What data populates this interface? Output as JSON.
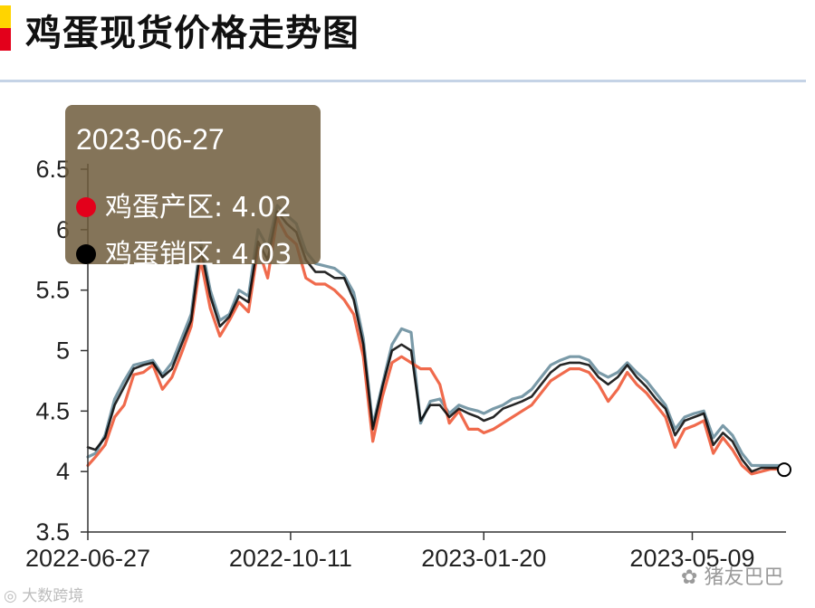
{
  "title": "鸡蛋现货价格走势图",
  "tooltip": {
    "date": "2023-06-27",
    "rows": [
      {
        "label": "鸡蛋产区: 4.02",
        "color": "#e3001b"
      },
      {
        "label": "鸡蛋销区: 4.03",
        "color": "#000000"
      }
    ]
  },
  "watermarks": {
    "left": "大数跨境",
    "right": "猪友巴巴"
  },
  "chart_data": {
    "type": "line",
    "title": "鸡蛋现货价格走势图",
    "xlabel": "",
    "ylabel": "",
    "ylim": [
      3.5,
      6.5
    ],
    "yticks": [
      3.5,
      4,
      4.5,
      5,
      5.5,
      6,
      6.5
    ],
    "ytick_labels": [
      "3.5",
      "4",
      "4.5",
      "5",
      "5.5",
      "6",
      "6.5"
    ],
    "xlim": [
      "2022-06-27",
      "2023-06-27"
    ],
    "xtick_labels": [
      "2022-06-27",
      "2022-10-11",
      "2023-01-20",
      "2023-05-09"
    ],
    "grid": false,
    "legend": "none",
    "x": [
      "2022-06-27",
      "2022-07-01",
      "2022-07-06",
      "2022-07-11",
      "2022-07-16",
      "2022-07-21",
      "2022-07-26",
      "2022-07-31",
      "2022-08-05",
      "2022-08-10",
      "2022-08-15",
      "2022-08-20",
      "2022-08-25",
      "2022-08-30",
      "2022-09-04",
      "2022-09-09",
      "2022-09-14",
      "2022-09-19",
      "2022-09-24",
      "2022-09-29",
      "2022-10-04",
      "2022-10-09",
      "2022-10-14",
      "2022-10-19",
      "2022-10-24",
      "2022-10-29",
      "2022-11-03",
      "2022-11-08",
      "2022-11-13",
      "2022-11-18",
      "2022-11-23",
      "2022-11-28",
      "2022-12-03",
      "2022-12-08",
      "2022-12-13",
      "2022-12-18",
      "2022-12-23",
      "2022-12-28",
      "2023-01-02",
      "2023-01-07",
      "2023-01-12",
      "2023-01-17",
      "2023-01-20",
      "2023-01-25",
      "2023-01-30",
      "2023-02-04",
      "2023-02-09",
      "2023-02-14",
      "2023-02-19",
      "2023-02-24",
      "2023-03-01",
      "2023-03-06",
      "2023-03-11",
      "2023-03-16",
      "2023-03-21",
      "2023-03-26",
      "2023-03-31",
      "2023-04-05",
      "2023-04-10",
      "2023-04-15",
      "2023-04-20",
      "2023-04-25",
      "2023-04-30",
      "2023-05-05",
      "2023-05-10",
      "2023-05-15",
      "2023-05-20",
      "2023-05-25",
      "2023-05-30",
      "2023-06-04",
      "2023-06-09",
      "2023-06-14",
      "2023-06-19",
      "2023-06-24",
      "2023-06-27"
    ],
    "series": [
      {
        "name": "鸡蛋产区",
        "color": "#f06a4c",
        "values": [
          4.05,
          4.12,
          4.22,
          4.45,
          4.55,
          4.8,
          4.82,
          4.88,
          4.68,
          4.78,
          4.98,
          5.2,
          5.75,
          5.35,
          5.12,
          5.25,
          5.4,
          5.32,
          5.85,
          5.6,
          6.1,
          5.95,
          5.88,
          5.6,
          5.55,
          5.55,
          5.5,
          5.42,
          5.3,
          4.95,
          4.25,
          4.62,
          4.9,
          4.95,
          4.9,
          4.85,
          4.85,
          4.72,
          4.4,
          4.5,
          4.35,
          4.35,
          4.32,
          4.35,
          4.4,
          4.45,
          4.5,
          4.55,
          4.65,
          4.75,
          4.8,
          4.85,
          4.85,
          4.82,
          4.72,
          4.58,
          4.68,
          4.82,
          4.72,
          4.65,
          4.55,
          4.45,
          4.2,
          4.35,
          4.38,
          4.42,
          4.15,
          4.28,
          4.18,
          4.05,
          3.98,
          4.0,
          4.02,
          4.02,
          4.02
        ]
      },
      {
        "name": "鸡蛋销区",
        "color": "#000000",
        "values": [
          4.2,
          4.18,
          4.28,
          4.55,
          4.7,
          4.85,
          4.88,
          4.9,
          4.78,
          4.85,
          5.05,
          5.25,
          5.85,
          5.45,
          5.2,
          5.28,
          5.45,
          5.4,
          5.9,
          5.75,
          6.15,
          6.05,
          5.98,
          5.75,
          5.65,
          5.65,
          5.6,
          5.6,
          5.42,
          5.05,
          4.35,
          4.7,
          5.0,
          5.05,
          5.0,
          4.42,
          4.55,
          4.55,
          4.45,
          4.52,
          4.48,
          4.45,
          4.42,
          4.45,
          4.52,
          4.55,
          4.58,
          4.62,
          4.72,
          4.82,
          4.88,
          4.9,
          4.9,
          4.88,
          4.78,
          4.72,
          4.78,
          4.88,
          4.78,
          4.7,
          4.6,
          4.52,
          4.3,
          4.42,
          4.45,
          4.48,
          4.22,
          4.32,
          4.25,
          4.1,
          4.0,
          4.03,
          4.03,
          4.03,
          4.03
        ]
      },
      {
        "name": "",
        "color": "#7a9aa8",
        "values": [
          4.12,
          4.15,
          4.3,
          4.6,
          4.75,
          4.88,
          4.9,
          4.92,
          4.8,
          4.9,
          5.1,
          5.3,
          5.9,
          5.5,
          5.25,
          5.3,
          5.5,
          5.45,
          6.0,
          5.85,
          6.2,
          6.12,
          6.05,
          5.82,
          5.72,
          5.7,
          5.68,
          5.62,
          5.48,
          5.1,
          4.38,
          4.72,
          5.05,
          5.18,
          5.15,
          4.4,
          4.58,
          4.6,
          4.48,
          4.55,
          4.52,
          4.5,
          4.48,
          4.52,
          4.55,
          4.6,
          4.62,
          4.68,
          4.78,
          4.88,
          4.92,
          4.95,
          4.95,
          4.92,
          4.82,
          4.78,
          4.82,
          4.9,
          4.82,
          4.75,
          4.65,
          4.55,
          4.35,
          4.45,
          4.48,
          4.5,
          4.28,
          4.38,
          4.3,
          4.15,
          4.05,
          4.05,
          4.05,
          4.05,
          4.05
        ]
      }
    ]
  }
}
